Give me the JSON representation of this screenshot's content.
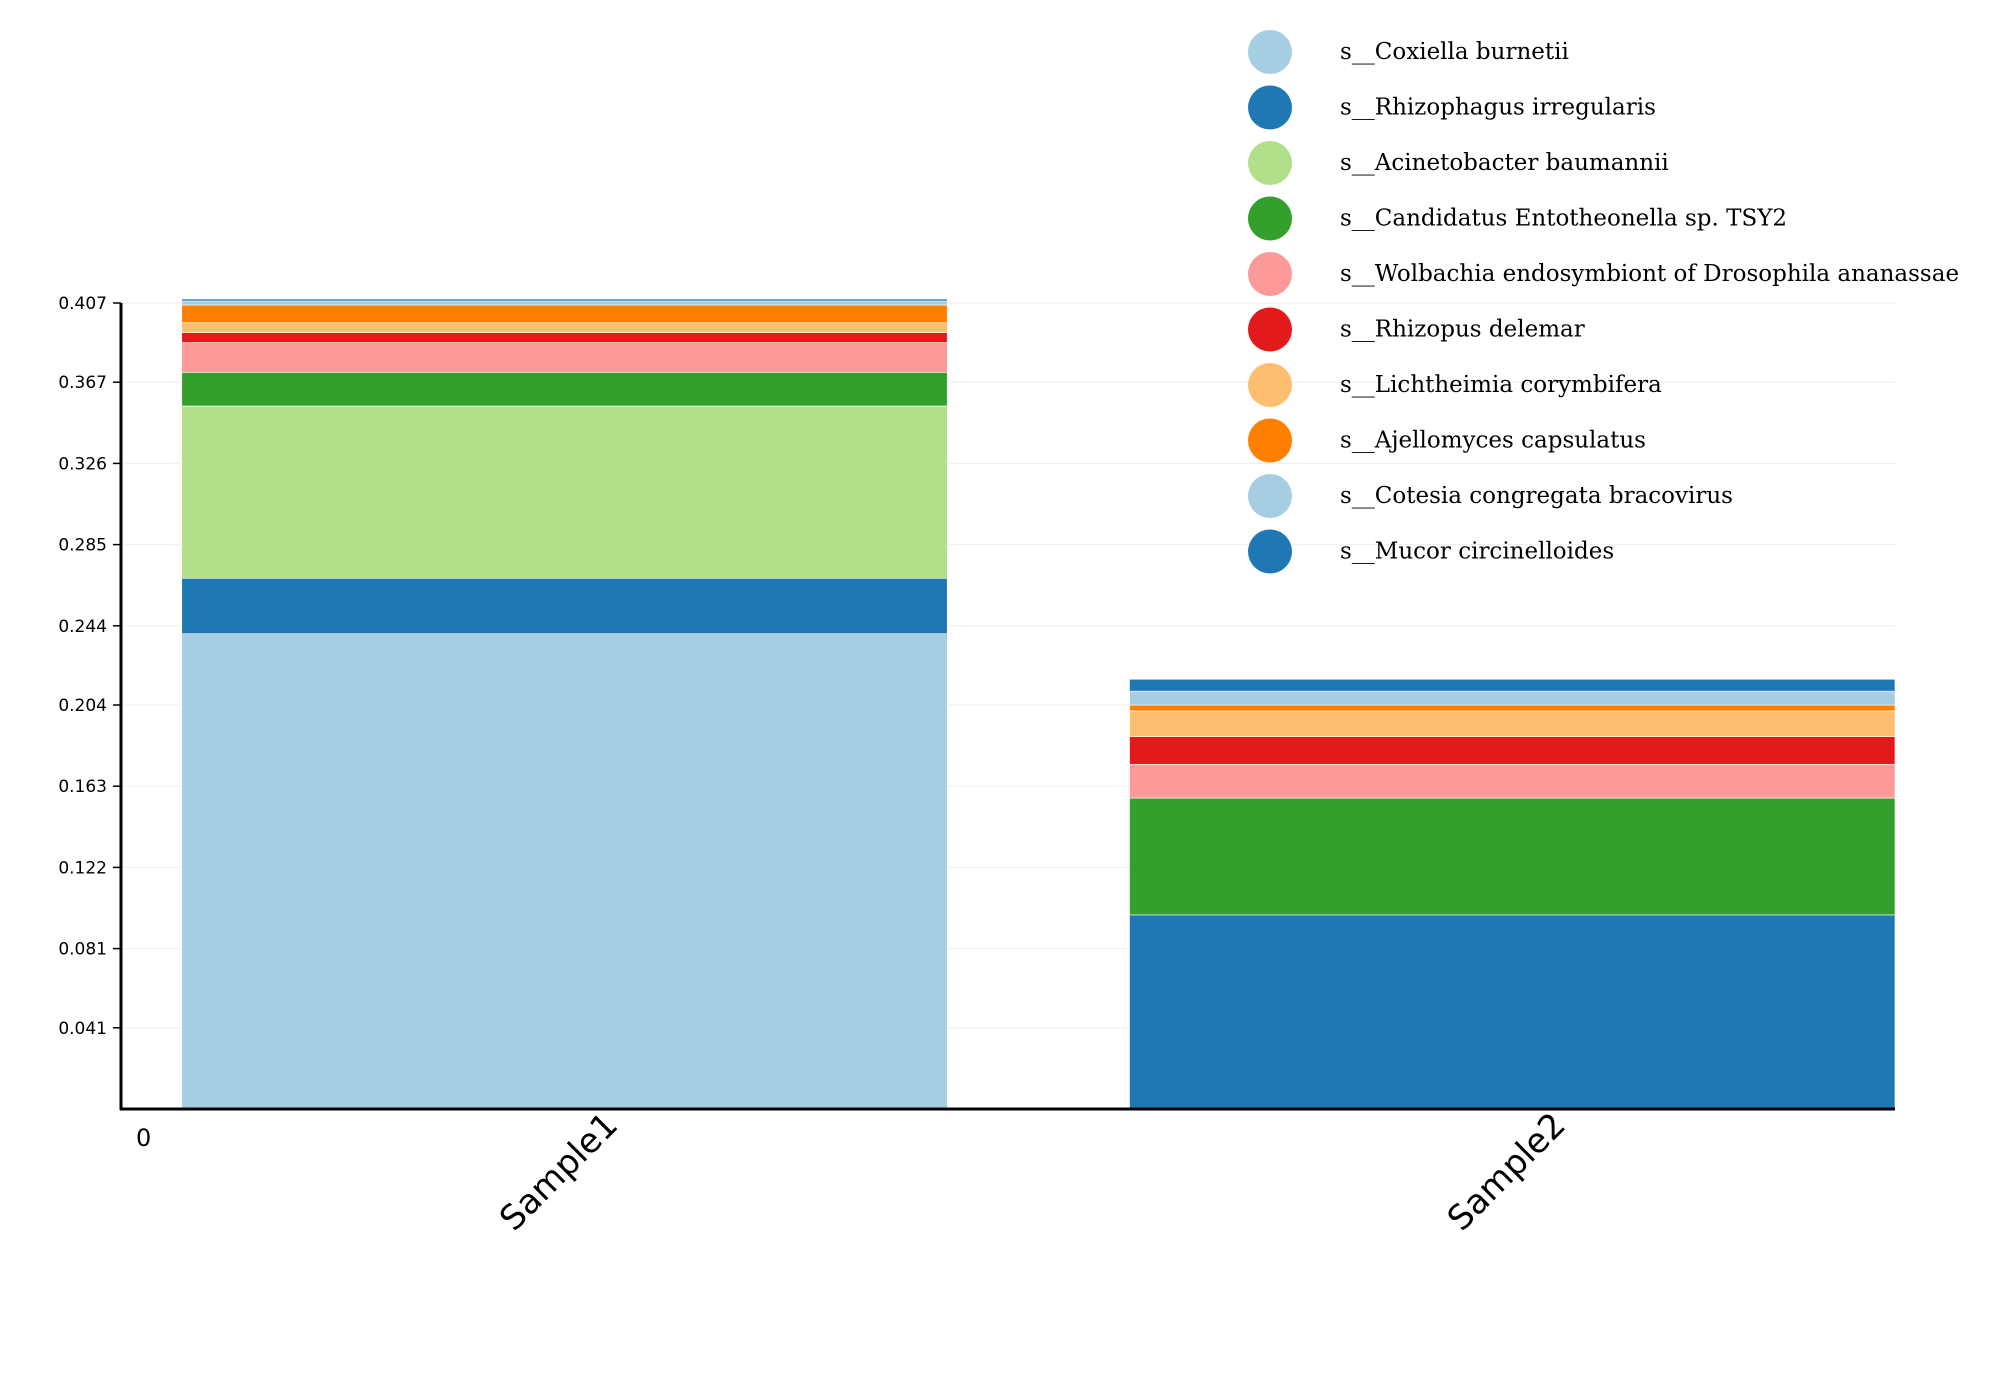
{
  "chart_data": {
    "type": "bar",
    "stacked": true,
    "categories": [
      "Sample1",
      "Sample2"
    ],
    "zero_label": "0",
    "y_ticks": [
      "0.041",
      "0.081",
      "0.122",
      "0.163",
      "0.204",
      "0.244",
      "0.285",
      "0.326",
      "0.367",
      "0.407"
    ],
    "ylim": [
      0,
      0.407
    ],
    "grid": true,
    "legend_position": "top-right",
    "series": [
      {
        "name": "s__Coxiella burnetii",
        "color": "#a6cee3",
        "values": [
          0.24,
          0.0
        ]
      },
      {
        "name": "s__Rhizophagus irregularis",
        "color": "#1f78b4",
        "values": [
          0.028,
          0.098
        ]
      },
      {
        "name": "s__Acinetobacter baumannii",
        "color": "#b2df8a",
        "values": [
          0.087,
          0.0
        ]
      },
      {
        "name": "s__Candidatus Entotheonella sp. TSY2",
        "color": "#33a02c",
        "values": [
          0.017,
          0.059
        ]
      },
      {
        "name": "s__Wolbachia endosymbiont of Drosophila ananassae",
        "color": "#fb9a99",
        "values": [
          0.015,
          0.017
        ]
      },
      {
        "name": "s__Rhizopus delemar",
        "color": "#e31a1c",
        "values": [
          0.005,
          0.014
        ]
      },
      {
        "name": "s__Lichtheimia corymbifera",
        "color": "#fdbf6f",
        "values": [
          0.005,
          0.013
        ]
      },
      {
        "name": "s__Ajellomyces capsulatus",
        "color": "#ff7f00",
        "values": [
          0.009,
          0.003
        ]
      },
      {
        "name": "s__Cotesia congregata bracovirus",
        "color": "#a6cee3",
        "values": [
          0.002,
          0.007
        ]
      },
      {
        "name": "s__Mucor circinelloides",
        "color": "#1f78b4",
        "values": [
          0.001,
          0.006
        ]
      }
    ]
  }
}
